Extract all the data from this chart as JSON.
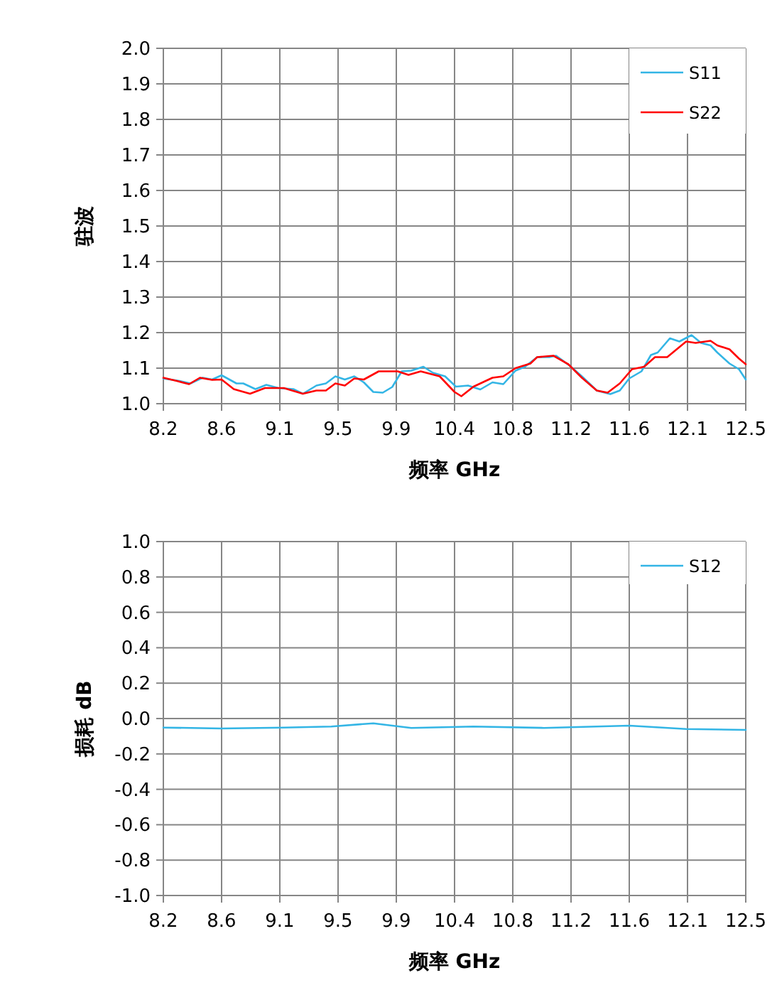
{
  "chart_data": [
    {
      "type": "line",
      "xlabel": "频率  GHz",
      "ylabel": "驻波",
      "xlim": [
        8.2,
        12.5
      ],
      "xticks": [
        {
          "value": 8.2,
          "label": "8.2"
        },
        {
          "value": 8.63,
          "label": "8.6"
        },
        {
          "value": 9.06,
          "label": "9.1"
        },
        {
          "value": 9.49,
          "label": "9.5"
        },
        {
          "value": 9.92,
          "label": "9.9"
        },
        {
          "value": 10.35,
          "label": "10.4"
        },
        {
          "value": 10.78,
          "label": "10.8"
        },
        {
          "value": 11.21,
          "label": "11.2"
        },
        {
          "value": 11.64,
          "label": "11.6"
        },
        {
          "value": 12.07,
          "label": "12.1"
        },
        {
          "value": 12.5,
          "label": "12.5"
        }
      ],
      "ylim": [
        1,
        2
      ],
      "yticks": [
        {
          "value": 1,
          "label": "1.0"
        },
        1.1,
        1.2,
        1.3,
        1.4,
        1.5,
        1.6,
        1.7,
        1.8,
        1.9,
        {
          "value": 2,
          "label": "2.0"
        }
      ],
      "grid": true,
      "legend": "top right",
      "series": [
        {
          "name": "S11",
          "color": "#33b5e5",
          "x": [
            8.2,
            8.32,
            8.4,
            8.49,
            8.56,
            8.63,
            8.74,
            8.79,
            8.88,
            8.96,
            9.05,
            9.16,
            9.23,
            9.33,
            9.4,
            9.47,
            9.54,
            9.61,
            9.68,
            9.75,
            9.82,
            9.89,
            9.96,
            10.03,
            10.12,
            10.19,
            10.28,
            10.36,
            10.45,
            10.54,
            10.63,
            10.71,
            10.8,
            10.87,
            10.96,
            11.05,
            11.1,
            11.2,
            11.29,
            11.4,
            11.5,
            11.57,
            11.64,
            11.73,
            11.8,
            11.85,
            11.94,
            12.01,
            12.1,
            12.17,
            12.24,
            12.29,
            12.38,
            12.45,
            12.5
          ],
          "values": [
            1.071,
            1.064,
            1.057,
            1.073,
            1.068,
            1.08,
            1.057,
            1.057,
            1.041,
            1.053,
            1.044,
            1.041,
            1.028,
            1.051,
            1.057,
            1.077,
            1.068,
            1.077,
            1.06,
            1.033,
            1.031,
            1.047,
            1.091,
            1.093,
            1.104,
            1.087,
            1.077,
            1.048,
            1.051,
            1.04,
            1.06,
            1.055,
            1.093,
            1.104,
            1.131,
            1.131,
            1.135,
            1.107,
            1.077,
            1.037,
            1.027,
            1.037,
            1.071,
            1.091,
            1.137,
            1.144,
            1.184,
            1.175,
            1.193,
            1.171,
            1.164,
            1.144,
            1.113,
            1.097,
            1.068
          ]
        },
        {
          "name": "S22",
          "color": "#ff0000",
          "x": [
            8.2,
            8.3,
            8.39,
            8.47,
            8.56,
            8.63,
            8.72,
            8.84,
            8.95,
            9.09,
            9.23,
            9.33,
            9.4,
            9.47,
            9.54,
            9.61,
            9.68,
            9.79,
            9.93,
            10.01,
            10.1,
            10.24,
            10.35,
            10.4,
            10.49,
            10.63,
            10.71,
            10.8,
            10.91,
            10.96,
            11.08,
            11.19,
            11.29,
            11.4,
            11.48,
            11.57,
            11.66,
            11.75,
            11.83,
            11.92,
            12.06,
            12.13,
            12.24,
            12.29,
            12.38,
            12.45,
            12.5
          ],
          "values": [
            1.073,
            1.064,
            1.055,
            1.073,
            1.067,
            1.068,
            1.041,
            1.028,
            1.044,
            1.044,
            1.028,
            1.037,
            1.037,
            1.057,
            1.051,
            1.071,
            1.068,
            1.091,
            1.091,
            1.081,
            1.091,
            1.077,
            1.033,
            1.021,
            1.048,
            1.073,
            1.077,
            1.1,
            1.113,
            1.131,
            1.135,
            1.111,
            1.073,
            1.037,
            1.031,
            1.057,
            1.097,
            1.104,
            1.131,
            1.131,
            1.175,
            1.171,
            1.177,
            1.164,
            1.153,
            1.127,
            1.111
          ]
        }
      ]
    },
    {
      "type": "line",
      "xlabel": "频率  GHz",
      "ylabel": "损耗 dB",
      "xlim": [
        8.2,
        12.5
      ],
      "xticks": [
        {
          "value": 8.2,
          "label": "8.2"
        },
        {
          "value": 8.63,
          "label": "8.6"
        },
        {
          "value": 9.06,
          "label": "9.1"
        },
        {
          "value": 9.49,
          "label": "9.5"
        },
        {
          "value": 9.92,
          "label": "9.9"
        },
        {
          "value": 10.35,
          "label": "10.4"
        },
        {
          "value": 10.78,
          "label": "10.8"
        },
        {
          "value": 11.21,
          "label": "11.2"
        },
        {
          "value": 11.64,
          "label": "11.6"
        },
        {
          "value": 12.07,
          "label": "12.1"
        },
        {
          "value": 12.5,
          "label": "12.5"
        }
      ],
      "ylim": [
        -1,
        1
      ],
      "yticks": [
        {
          "value": -1,
          "label": "-1.0"
        },
        -0.8,
        -0.6,
        -0.4,
        -0.2,
        {
          "value": 0,
          "label": "0.0"
        },
        0.2,
        0.4,
        0.6,
        0.8,
        {
          "value": 1,
          "label": "1.0"
        }
      ],
      "grid": true,
      "legend": "top right",
      "series": [
        {
          "name": "S12",
          "color": "#33b5e5",
          "x": [
            8.2,
            8.63,
            9.09,
            9.44,
            9.75,
            10.03,
            10.49,
            11.01,
            11.64,
            12.06,
            12.5
          ],
          "values": [
            -0.051,
            -0.056,
            -0.051,
            -0.045,
            -0.027,
            -0.053,
            -0.045,
            -0.053,
            -0.04,
            -0.059,
            -0.064
          ]
        }
      ]
    }
  ]
}
